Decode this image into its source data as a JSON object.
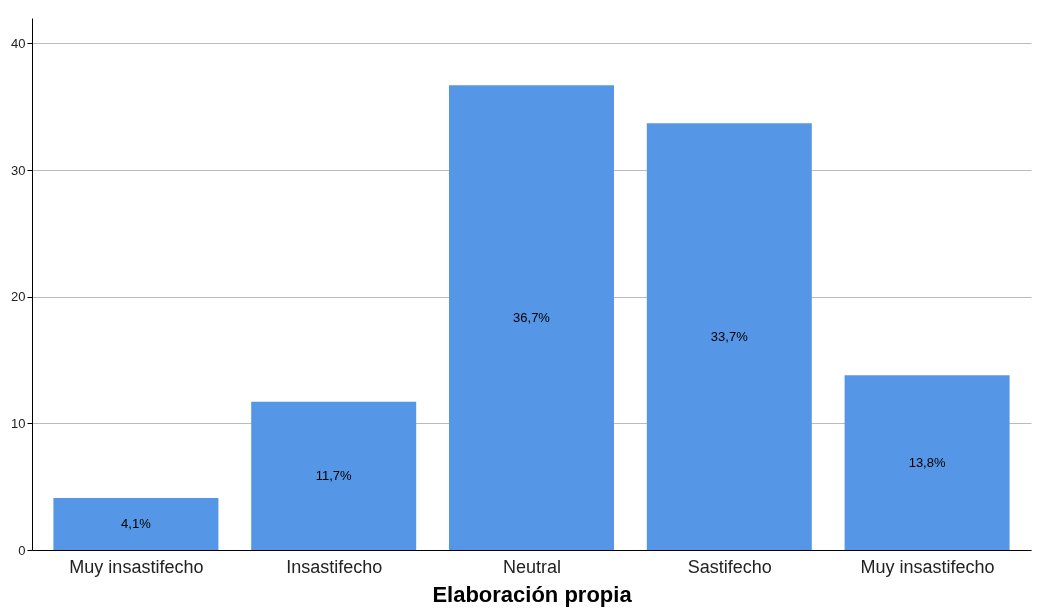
{
  "chart_data": {
    "type": "bar",
    "xlabel": "Elaboración propia",
    "categories": [
      "Muy insastifecho",
      "Insastifecho",
      "Neutral",
      "Sastifecho",
      "Muy insastifecho"
    ],
    "values": [
      4.1,
      11.7,
      36.7,
      33.7,
      13.8
    ],
    "value_labels": [
      "4,1%",
      "11,7%",
      "36,7%",
      "33,7%",
      "13,8%"
    ],
    "color": "#5596e6",
    "ylim": [
      0,
      42
    ],
    "yticks": [
      0,
      10,
      20,
      30,
      40
    ],
    "grid": "y"
  }
}
